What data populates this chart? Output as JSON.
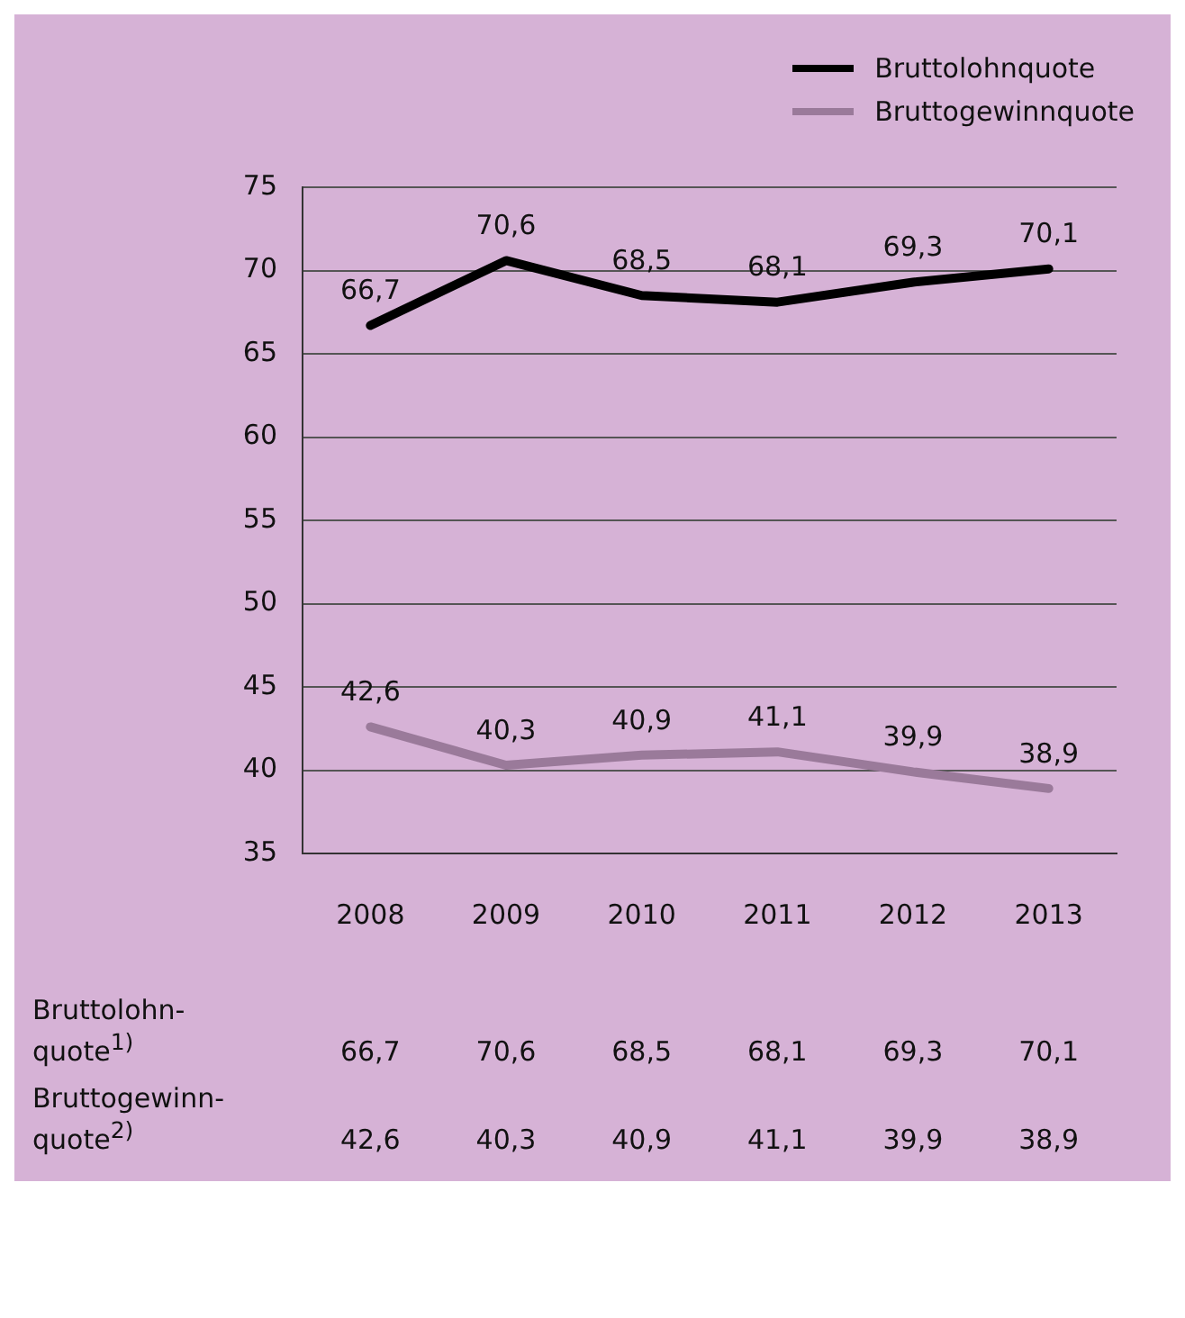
{
  "chart_data": {
    "type": "line",
    "categories": [
      "2008",
      "2009",
      "2010",
      "2011",
      "2012",
      "2013"
    ],
    "series": [
      {
        "name": "Bruttolohnquote",
        "color": "#000000",
        "values": [
          66.7,
          70.6,
          68.5,
          68.1,
          69.3,
          70.1
        ],
        "value_labels": [
          "66,7",
          "70,6",
          "68,5",
          "68,1",
          "69,3",
          "70,1"
        ]
      },
      {
        "name": "Bruttogewinnquote",
        "color": "#9a7a9a",
        "values": [
          42.6,
          40.3,
          40.9,
          41.1,
          39.9,
          38.9
        ],
        "value_labels": [
          "42,6",
          "40,3",
          "40,9",
          "41,1",
          "39,9",
          "38,9"
        ]
      }
    ],
    "ylim": [
      35,
      75
    ],
    "yticks": [
      35,
      40,
      45,
      50,
      55,
      60,
      65,
      70,
      75
    ],
    "grid": "y",
    "legend": "top right",
    "marker": "none",
    "line_style": "solid",
    "annotations": [
      "Bruttolohn-quote$^{1)}$",
      "Bruttogewinn-quote$^{2)}$"
    ]
  }
}
